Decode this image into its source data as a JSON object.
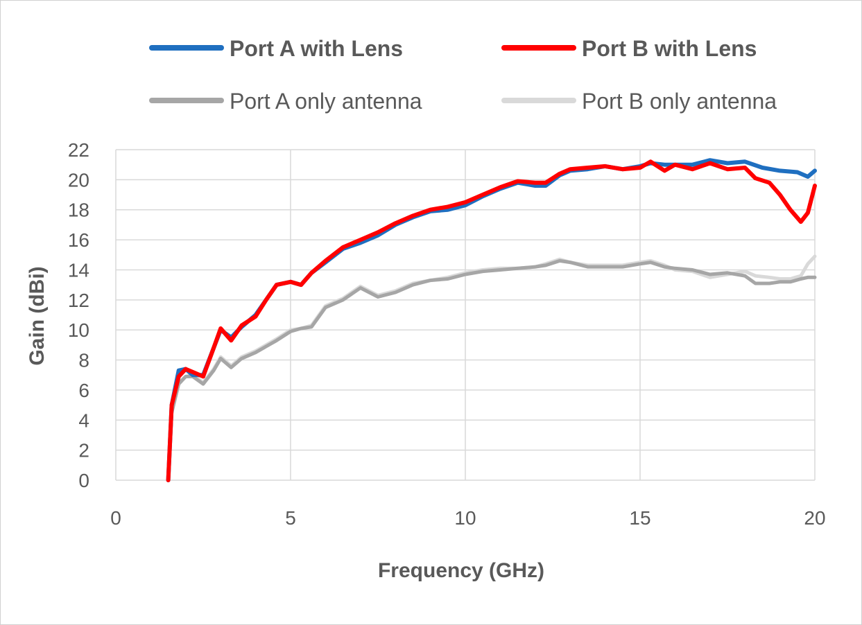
{
  "chart_data": {
    "type": "line",
    "title": "",
    "xlabel": "Frequency (GHz)",
    "ylabel": "Gain (dBi)",
    "xlim": [
      0,
      20
    ],
    "ylim": [
      0,
      22
    ],
    "xticks": [
      0,
      5,
      10,
      15,
      20
    ],
    "yticks": [
      0,
      2,
      4,
      6,
      8,
      10,
      12,
      14,
      16,
      18,
      20,
      22
    ],
    "grid": true,
    "legend_position": "top",
    "series": [
      {
        "name": "Port A with Lens",
        "color": "#1f6fc0",
        "bold": true,
        "x": [
          1.5,
          1.6,
          1.8,
          2.0,
          2.2,
          2.5,
          2.8,
          3.0,
          3.3,
          3.6,
          4.0,
          4.3,
          4.6,
          5.0,
          5.3,
          5.6,
          6.0,
          6.5,
          7.0,
          7.5,
          8.0,
          8.5,
          9.0,
          9.5,
          10.0,
          10.5,
          11.0,
          11.5,
          12.0,
          12.3,
          12.7,
          13.0,
          13.5,
          14.0,
          14.5,
          15.0,
          15.3,
          15.7,
          16.0,
          16.5,
          17.0,
          17.5,
          18.0,
          18.5,
          19.0,
          19.5,
          19.8,
          20.0
        ],
        "values": [
          0,
          5.0,
          7.3,
          7.4,
          7.0,
          7.0,
          8.8,
          10.0,
          9.5,
          10.2,
          11.0,
          12.0,
          13.0,
          13.2,
          13.0,
          13.8,
          14.5,
          15.4,
          15.8,
          16.3,
          17.0,
          17.5,
          17.9,
          18.0,
          18.3,
          18.9,
          19.4,
          19.8,
          19.6,
          19.6,
          20.3,
          20.6,
          20.7,
          20.9,
          20.7,
          20.9,
          21.1,
          21.0,
          21.0,
          21.0,
          21.3,
          21.1,
          21.2,
          20.8,
          20.6,
          20.5,
          20.2,
          20.6
        ]
      },
      {
        "name": "Port B with Lens",
        "color": "#ff0000",
        "bold": true,
        "x": [
          1.5,
          1.6,
          1.8,
          2.0,
          2.2,
          2.5,
          2.8,
          3.0,
          3.3,
          3.6,
          4.0,
          4.3,
          4.6,
          5.0,
          5.3,
          5.6,
          6.0,
          6.5,
          7.0,
          7.5,
          8.0,
          8.5,
          9.0,
          9.5,
          10.0,
          10.5,
          11.0,
          11.5,
          12.0,
          12.3,
          12.7,
          13.0,
          13.5,
          14.0,
          14.5,
          15.0,
          15.3,
          15.7,
          16.0,
          16.5,
          17.0,
          17.5,
          18.0,
          18.3,
          18.7,
          19.0,
          19.3,
          19.6,
          19.8,
          20.0
        ],
        "values": [
          0,
          5.0,
          6.9,
          7.4,
          7.2,
          6.9,
          8.8,
          10.1,
          9.3,
          10.3,
          10.9,
          12.0,
          13.0,
          13.2,
          13.0,
          13.8,
          14.6,
          15.5,
          16.0,
          16.5,
          17.1,
          17.6,
          18.0,
          18.2,
          18.5,
          19.0,
          19.5,
          19.9,
          19.8,
          19.8,
          20.4,
          20.7,
          20.8,
          20.9,
          20.7,
          20.8,
          21.2,
          20.6,
          21.0,
          20.7,
          21.1,
          20.7,
          20.8,
          20.1,
          19.8,
          19.0,
          18.0,
          17.2,
          17.8,
          19.6
        ]
      },
      {
        "name": "Port A only antenna",
        "color": "#a6a6a6",
        "bold": false,
        "x": [
          1.5,
          1.6,
          1.8,
          2.0,
          2.2,
          2.5,
          2.8,
          3.0,
          3.3,
          3.6,
          4.0,
          4.3,
          4.6,
          5.0,
          5.3,
          5.6,
          6.0,
          6.5,
          7.0,
          7.5,
          8.0,
          8.5,
          9.0,
          9.5,
          10.0,
          10.5,
          11.0,
          11.5,
          12.0,
          12.3,
          12.7,
          13.0,
          13.5,
          14.0,
          14.5,
          15.0,
          15.3,
          15.7,
          16.0,
          16.5,
          17.0,
          17.5,
          18.0,
          18.3,
          18.7,
          19.0,
          19.3,
          19.6,
          19.8,
          20.0
        ],
        "values": [
          0,
          4.5,
          6.4,
          6.9,
          6.9,
          6.4,
          7.3,
          8.1,
          7.5,
          8.1,
          8.5,
          8.9,
          9.3,
          9.9,
          10.1,
          10.2,
          11.5,
          12.0,
          12.8,
          12.2,
          12.5,
          13.0,
          13.3,
          13.4,
          13.7,
          13.9,
          14.0,
          14.1,
          14.2,
          14.3,
          14.6,
          14.5,
          14.2,
          14.2,
          14.2,
          14.4,
          14.5,
          14.2,
          14.1,
          14.0,
          13.7,
          13.8,
          13.6,
          13.1,
          13.1,
          13.2,
          13.2,
          13.4,
          13.5,
          13.5
        ]
      },
      {
        "name": "Port B only antenna",
        "color": "#d9d9d9",
        "bold": false,
        "x": [
          1.5,
          1.6,
          1.8,
          2.0,
          2.2,
          2.5,
          2.8,
          3.0,
          3.3,
          3.6,
          4.0,
          4.3,
          4.6,
          5.0,
          5.3,
          5.6,
          6.0,
          6.5,
          7.0,
          7.5,
          8.0,
          8.5,
          9.0,
          9.5,
          10.0,
          10.5,
          11.0,
          11.5,
          12.0,
          12.3,
          12.7,
          13.0,
          13.5,
          14.0,
          14.5,
          15.0,
          15.3,
          15.7,
          16.0,
          16.5,
          17.0,
          17.5,
          18.0,
          18.3,
          18.7,
          19.0,
          19.3,
          19.6,
          19.8,
          20.0
        ],
        "values": [
          0,
          4.5,
          6.5,
          6.9,
          7.0,
          6.5,
          7.4,
          8.2,
          7.6,
          8.2,
          8.6,
          9.0,
          9.4,
          10.0,
          10.1,
          10.3,
          11.6,
          12.1,
          12.9,
          12.3,
          12.6,
          13.1,
          13.3,
          13.5,
          13.8,
          14.0,
          14.1,
          14.1,
          14.2,
          14.4,
          14.7,
          14.5,
          14.3,
          14.3,
          14.3,
          14.5,
          14.6,
          14.3,
          14.0,
          13.9,
          13.5,
          13.7,
          13.9,
          13.6,
          13.5,
          13.4,
          13.4,
          13.6,
          14.4,
          14.9
        ]
      }
    ]
  }
}
